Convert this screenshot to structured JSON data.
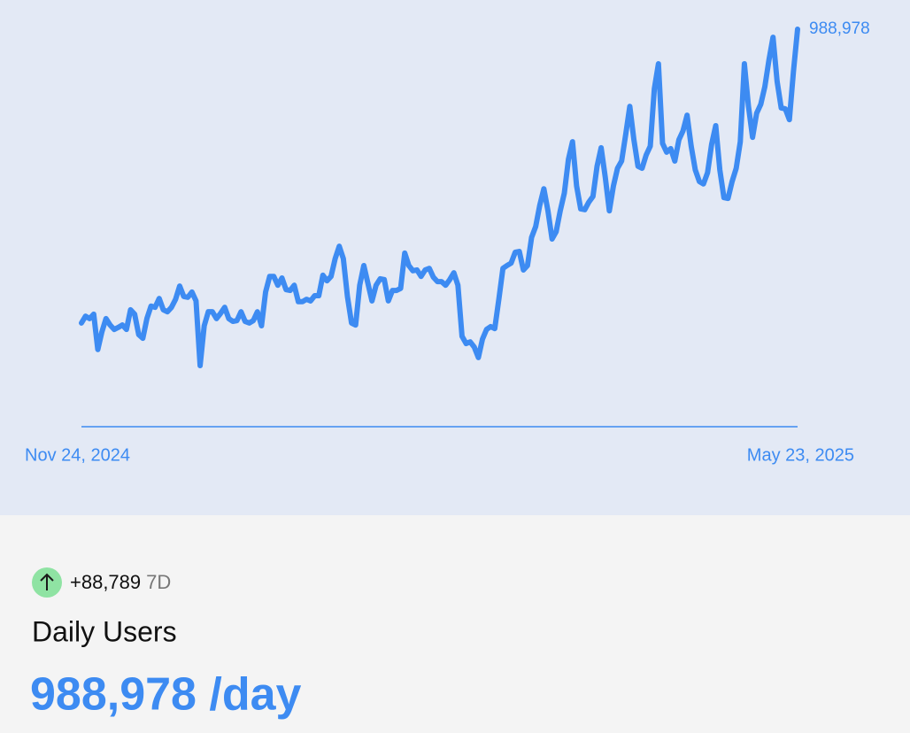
{
  "chart_data": {
    "type": "line",
    "categories": [
      "Nov 24, 2024",
      null,
      null,
      null,
      null,
      null,
      null,
      null,
      null,
      null,
      null,
      null,
      null,
      null,
      null,
      null,
      null,
      null,
      null,
      null,
      null,
      null,
      null,
      null,
      null,
      null,
      null,
      null,
      null,
      null,
      null,
      null,
      null,
      null,
      null,
      null,
      null,
      null,
      null,
      null,
      null,
      null,
      null,
      null,
      null,
      null,
      null,
      null,
      null,
      null,
      null,
      null,
      null,
      null,
      null,
      null,
      null,
      null,
      null,
      null,
      null,
      null,
      null,
      null,
      null,
      null,
      null,
      null,
      null,
      null,
      null,
      null,
      null,
      null,
      null,
      null,
      null,
      null,
      null,
      null,
      null,
      null,
      null,
      null,
      null,
      null,
      null,
      null,
      null,
      null,
      null,
      null,
      null,
      null,
      null,
      null,
      null,
      null,
      null,
      null,
      null,
      null,
      null,
      null,
      null,
      null,
      null,
      null,
      null,
      null,
      null,
      null,
      null,
      null,
      null,
      null,
      null,
      null,
      null,
      null,
      null,
      null,
      null,
      null,
      null,
      null,
      null,
      null,
      null,
      null,
      null,
      null,
      null,
      null,
      null,
      null,
      null,
      null,
      null,
      null,
      null,
      null,
      null,
      null,
      null,
      null,
      null,
      null,
      null,
      null,
      null,
      null,
      null,
      null,
      null,
      null,
      null,
      null,
      null,
      null,
      null,
      null,
      null,
      null,
      null,
      null,
      null,
      null,
      null,
      null,
      null,
      null,
      null,
      null,
      null,
      "May 23, 2025"
    ],
    "series": [
      {
        "name": "Daily Users",
        "color": "#3d8bf2",
        "values": [
          258000,
          275000,
          269000,
          280000,
          192000,
          236000,
          269000,
          253000,
          242000,
          247000,
          253000,
          242000,
          291000,
          280000,
          229000,
          220000,
          269000,
          300000,
          297000,
          319000,
          291000,
          286000,
          297000,
          317000,
          350000,
          324000,
          322000,
          335000,
          313000,
          152000,
          251000,
          286000,
          286000,
          269000,
          282000,
          297000,
          269000,
          262000,
          264000,
          286000,
          262000,
          258000,
          264000,
          286000,
          251000,
          335000,
          374000,
          374000,
          352000,
          370000,
          341000,
          339000,
          352000,
          311000,
          311000,
          317000,
          313000,
          326000,
          326000,
          377000,
          363000,
          374000,
          418000,
          449000,
          418000,
          324000,
          258000,
          253000,
          352000,
          401000,
          357000,
          313000,
          352000,
          368000,
          366000,
          313000,
          339000,
          339000,
          344000,
          432000,
          401000,
          388000,
          390000,
          374000,
          390000,
          394000,
          372000,
          361000,
          361000,
          352000,
          366000,
          383000,
          352000,
          225000,
          207000,
          211000,
          198000,
          172000,
          218000,
          242000,
          249000,
          244000,
          317000,
          394000,
          401000,
          407000,
          434000,
          436000,
          390000,
          401000,
          471000,
          498000,
          551000,
          592000,
          537000,
          467000,
          485000,
          537000,
          581000,
          665000,
          709000,
          599000,
          542000,
          540000,
          559000,
          573000,
          648000,
          694000,
          621000,
          537000,
          599000,
          643000,
          661000,
          727000,
          797000,
          714000,
          648000,
          643000,
          676000,
          698000,
          841000,
          903000,
          705000,
          683000,
          692000,
          661000,
          714000,
          736000,
          775000,
          698000,
          639000,
          610000,
          604000,
          632000,
          703000,
          749000,
          639000,
          570000,
          568000,
          610000,
          643000,
          709000,
          903000,
          797000,
          720000,
          780000,
          802000,
          846000,
          912000,
          969000,
          859000,
          793000,
          791000,
          764000,
          885000,
          988978
        ]
      }
    ],
    "last_value_label": "988,978",
    "ylim": [
      0,
      1000000
    ]
  },
  "summary": {
    "change": "+88,789",
    "period": "7D",
    "title": "Daily Users",
    "headline": "988,978 /day"
  }
}
